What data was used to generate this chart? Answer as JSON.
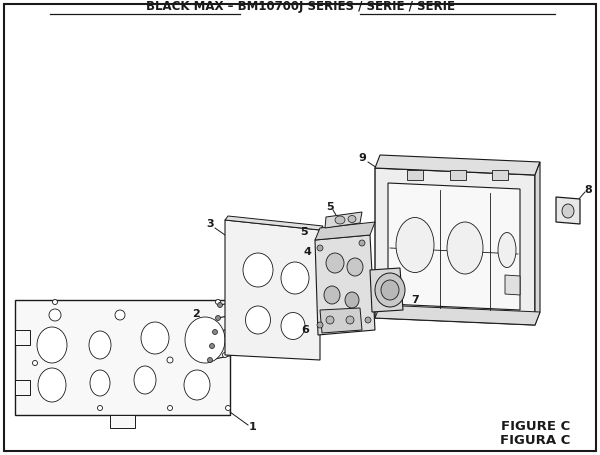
{
  "title": "BLACK MAX – BM10700J SERIES / SÉRIE / SERIE",
  "figure_label": "FIGURE C",
  "figura_label": "FIGURA C",
  "bg_color": "#ffffff",
  "border_color": "#1a1a1a",
  "line_color": "#1a1a1a",
  "label_color": "#1a1a1a",
  "title_fontsize": 8.5,
  "label_fontsize": 8,
  "fig_label_fontsize": 9.5
}
